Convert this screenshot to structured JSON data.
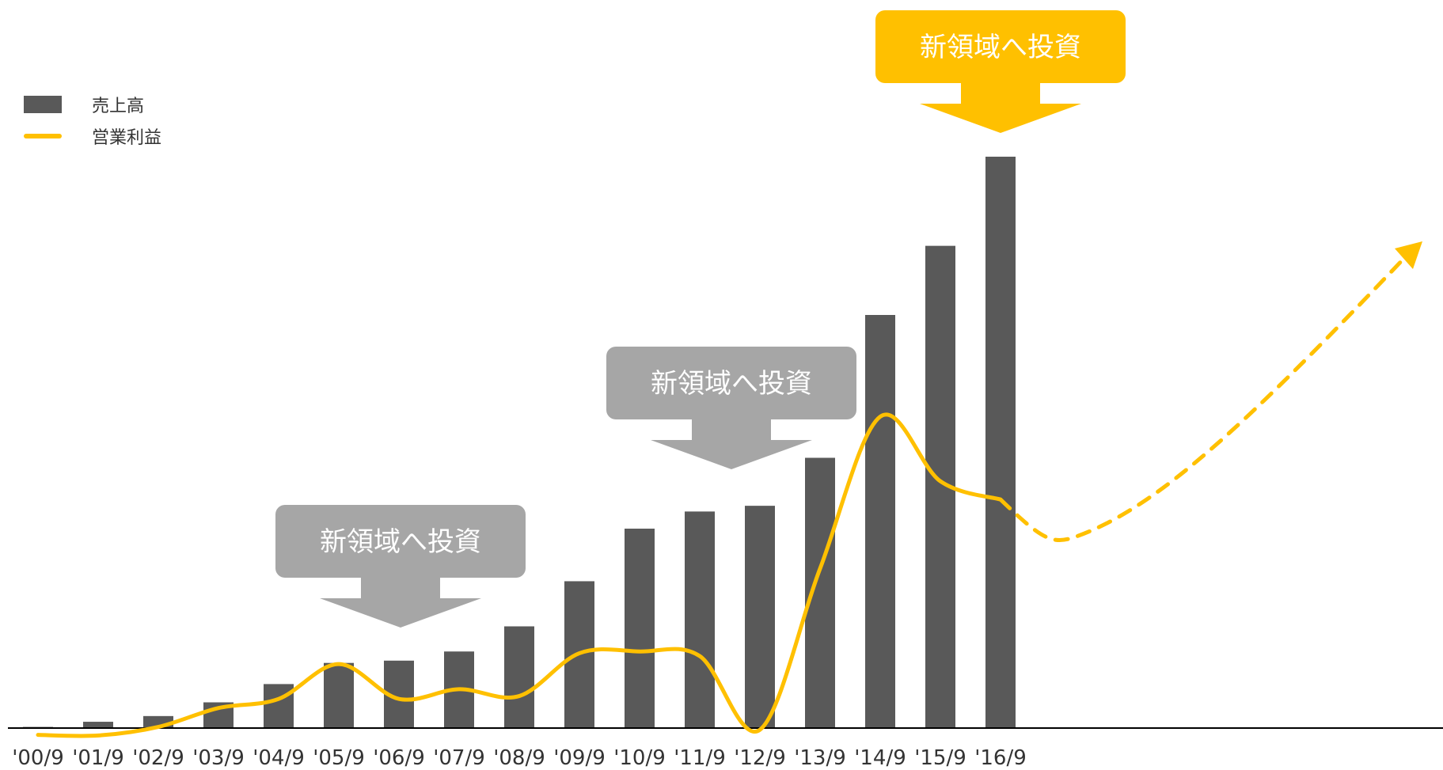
{
  "chart_data": {
    "type": "bar",
    "title": "",
    "xlabel": "",
    "ylabel": "",
    "categories": [
      "'00/9",
      "'01/9",
      "'02/9",
      "'03/9",
      "'04/9",
      "'05/9",
      "'06/9",
      "'07/9",
      "'08/9",
      "'09/9",
      "'10/9",
      "'11/9",
      "'12/9",
      "'13/9",
      "'14/9",
      "'15/9",
      "'16/9"
    ],
    "ylim": [
      0,
      100
    ],
    "series": [
      {
        "name": "売上高",
        "kind": "bar",
        "color": "#595959",
        "values": [
          0.2,
          1.1,
          2.1,
          4.5,
          7.7,
          11.4,
          11.8,
          13.4,
          17.8,
          25.7,
          34.9,
          37.9,
          38.9,
          47.3,
          72.3,
          84.4,
          100
        ]
      },
      {
        "name": "営業利益",
        "kind": "line",
        "color": "#FFC000",
        "values": [
          -1.2,
          -1.3,
          0.2,
          3.5,
          5.1,
          11.2,
          5.1,
          6.8,
          5.6,
          13.1,
          13.4,
          12.6,
          -0.3,
          27.9,
          54.5,
          43.2,
          40
        ]
      }
    ],
    "legend": {
      "placement": "top-left",
      "entries": [
        "売上高",
        "営業利益"
      ]
    },
    "annotations": [
      {
        "text": "新領域へ投資",
        "color": "#A6A6A6",
        "category": "'05/9"
      },
      {
        "text": "新領域へ投資",
        "color": "#A6A6A6",
        "category": "'11/9"
      },
      {
        "text": "新領域へ投資",
        "color": "#FFC000",
        "category": "'16/9"
      }
    ],
    "projection": {
      "style": "dashed",
      "color": "#FFC000",
      "direction": "up"
    },
    "grid": false
  }
}
